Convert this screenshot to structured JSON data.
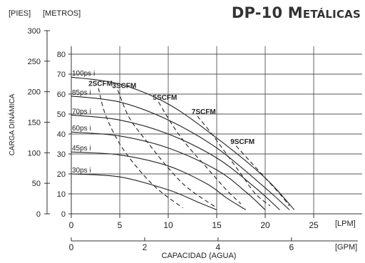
{
  "header": {
    "title_main": "DP-10",
    "title_first": "M",
    "title_rest": "ETÁLICAS"
  },
  "chart_data": {
    "type": "line",
    "title": "DP-10 Metálicas",
    "ylabel": "CARGA DINÁMICA",
    "xlabel": "CAPACIDAD (AGUA)",
    "y_unit_feet": "[PIES]",
    "y_unit_meters": "[METROS]",
    "x_unit_lpm": "[LPM]",
    "x_unit_gpm": "[GPM]",
    "y_feet_ticks": [
      "300",
      "250",
      "200",
      "150",
      "100",
      "50",
      "0"
    ],
    "y_feet_values": [
      300,
      250,
      200,
      150,
      100,
      50,
      0
    ],
    "y_meter_ticks": [
      "80",
      "70",
      "60",
      "50",
      "40",
      "30",
      "20",
      "10",
      "0"
    ],
    "y_meter_values": [
      80,
      70,
      60,
      50,
      40,
      30,
      20,
      10,
      0
    ],
    "x_lpm_ticks": [
      "0",
      "5",
      "10",
      "15",
      "20",
      "25"
    ],
    "x_lpm_values": [
      0,
      5,
      10,
      15,
      20,
      25
    ],
    "x_gpm_ticks": [
      "0",
      "2",
      "4",
      "6"
    ],
    "x_gpm_values": [
      0,
      2,
      4,
      6
    ],
    "ylim_meters": [
      0,
      85
    ],
    "xlim_lpm": [
      0,
      30
    ],
    "grid": true,
    "pressure_curves": [
      {
        "name": "100psi",
        "label": "100ps i",
        "points": [
          [
            0,
            68.5
          ],
          [
            5,
            65
          ],
          [
            10,
            55
          ],
          [
            15,
            38
          ],
          [
            20,
            18
          ],
          [
            23,
            2
          ]
        ]
      },
      {
        "name": "85psi",
        "label": "85ps i",
        "points": [
          [
            0,
            59
          ],
          [
            5,
            56
          ],
          [
            10,
            47
          ],
          [
            15,
            33
          ],
          [
            20,
            13
          ],
          [
            22.5,
            2
          ]
        ]
      },
      {
        "name": "70psi",
        "label": "70ps i",
        "points": [
          [
            0,
            49.5
          ],
          [
            5,
            47
          ],
          [
            10,
            40
          ],
          [
            15,
            28
          ],
          [
            19,
            13
          ],
          [
            21.5,
            2
          ]
        ]
      },
      {
        "name": "60psi",
        "label": "60ps i",
        "points": [
          [
            0,
            41
          ],
          [
            5,
            39
          ],
          [
            10,
            33
          ],
          [
            15,
            22
          ],
          [
            18,
            11
          ],
          [
            20,
            2
          ]
        ]
      },
      {
        "name": "45psi",
        "label": "45ps i",
        "points": [
          [
            0,
            31
          ],
          [
            5,
            29.5
          ],
          [
            10,
            24
          ],
          [
            14,
            15
          ],
          [
            16,
            8
          ],
          [
            18,
            2
          ]
        ]
      },
      {
        "name": "30psi",
        "label": "30ps i",
        "points": [
          [
            0,
            20
          ],
          [
            5,
            18.5
          ],
          [
            10,
            12
          ],
          [
            13,
            6
          ],
          [
            15,
            2
          ]
        ]
      }
    ],
    "air_curves": [
      {
        "name": "2SCFM",
        "label": "2SCFM",
        "points": [
          [
            2.8,
            63
          ],
          [
            3.5,
            50
          ],
          [
            5,
            35
          ],
          [
            7,
            22
          ],
          [
            9,
            12
          ],
          [
            11.5,
            3
          ]
        ]
      },
      {
        "name": "3SCFM",
        "label": "3SCFM",
        "points": [
          [
            4.8,
            62
          ],
          [
            6,
            48
          ],
          [
            8,
            35
          ],
          [
            10,
            23
          ],
          [
            12,
            13
          ],
          [
            15,
            3
          ]
        ]
      },
      {
        "name": "5SCFM",
        "label": "5SCFM",
        "points": [
          [
            9,
            56
          ],
          [
            10.5,
            44
          ],
          [
            12,
            34
          ],
          [
            14,
            23
          ],
          [
            16,
            12
          ],
          [
            17.5,
            5
          ]
        ]
      },
      {
        "name": "7SCFM",
        "label": "7SCFM",
        "points": [
          [
            13,
            49
          ],
          [
            14.5,
            40
          ],
          [
            16,
            30
          ],
          [
            17.5,
            20
          ],
          [
            19,
            10
          ],
          [
            20.5,
            4
          ]
        ]
      },
      {
        "name": "9SCFM",
        "label": "9SCFM",
        "points": [
          [
            17,
            34
          ],
          [
            18.5,
            26
          ],
          [
            20,
            18
          ],
          [
            21.5,
            10
          ],
          [
            22.5,
            4
          ]
        ]
      }
    ]
  }
}
